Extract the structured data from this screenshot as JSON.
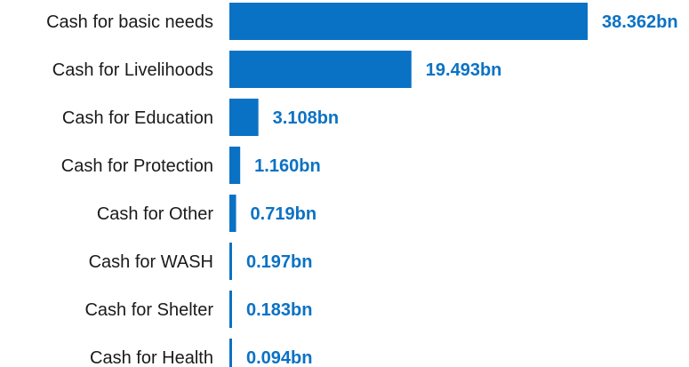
{
  "chart_data": {
    "type": "bar",
    "orientation": "horizontal",
    "categories": [
      "Cash for basic needs",
      "Cash for Livelihoods",
      "Cash for Education",
      "Cash for Protection",
      "Cash for Other",
      "Cash for WASH",
      "Cash for Shelter",
      "Cash for Health"
    ],
    "values": [
      38.362,
      19.493,
      3.108,
      1.16,
      0.719,
      0.197,
      0.183,
      0.094
    ],
    "value_labels": [
      "38.362bn",
      "19.493bn",
      "3.108bn",
      "1.160bn",
      "0.719bn",
      "0.197bn",
      "0.183bn",
      "0.094bn"
    ],
    "xlim": [
      0,
      38.362
    ],
    "grid": false,
    "bar_color": "#0a72c4",
    "label_color": "#0a72c4"
  }
}
